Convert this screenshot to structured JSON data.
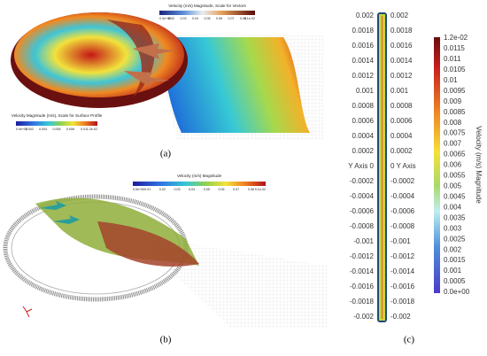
{
  "panel_a": {
    "label": "(a)",
    "vector_scale": {
      "title": "Velocity (m/s) Magnitude, Scale for Vectors",
      "ticks": [
        "0.0e+00",
        "0.02",
        "0.03",
        "0.04",
        "0.05",
        "0.06",
        "0.07",
        "0.08",
        "9.1e-02"
      ]
    },
    "surface_scale": {
      "title": "Velocity Magnitude (m/s), Scale for Surface Profile",
      "ticks": [
        "0.0e+00",
        "0.002",
        "0.004",
        "0.006",
        "0.008",
        "0.01",
        "1.2e-02"
      ]
    }
  },
  "panel_b": {
    "label": "(b)",
    "scale": {
      "title": "Velocity (m/s) Magnitude",
      "ticks": [
        "0.0e+00",
        "0.01",
        "0.02",
        "0.03",
        "0.04",
        "0.05",
        "0.06",
        "0.07",
        "0.08",
        "9.1e-02"
      ]
    }
  },
  "panel_c": {
    "label": "(c)",
    "y_axis_left": [
      "0.002",
      "0.0018",
      "0.0016",
      "0.0014",
      "0.0012",
      "0.001",
      "0.0008",
      "0.0006",
      "0.0004",
      "0.0002",
      "Y Axis 0",
      "-0.0002",
      "-0.0004",
      "-0.0006",
      "-0.0008",
      "-0.001",
      "-0.0012",
      "-0.0014",
      "-0.0016",
      "-0.0018",
      "-0.002"
    ],
    "y_axis_right": [
      "0.002",
      "0.0018",
      "0.0016",
      "0.0014",
      "0.0012",
      "0.001",
      "0.0008",
      "0.0006",
      "0.0004",
      "0.0002",
      "0 Y Axis",
      "-0.0002",
      "-0.0004",
      "-0.0006",
      "-0.0008",
      "-0.001",
      "-0.0012",
      "-0.0014",
      "-0.0016",
      "-0.0018",
      "-0.002"
    ],
    "colorbar": {
      "title": "Velocity (m/s) Magnitude",
      "ticks": [
        "1.2e-02",
        "0.0115",
        "0.011",
        "0.0105",
        "0.01",
        "0.0095",
        "0.009",
        "0.0085",
        "0.008",
        "0.0075",
        "0.007",
        "0.0065",
        "0.006",
        "0.0055",
        "0.005",
        "0.0045",
        "0.004",
        "0.0035",
        "0.003",
        "0.0025",
        "0.002",
        "0.0015",
        "0.001",
        "0.0005",
        "0.0e+00"
      ]
    }
  }
}
